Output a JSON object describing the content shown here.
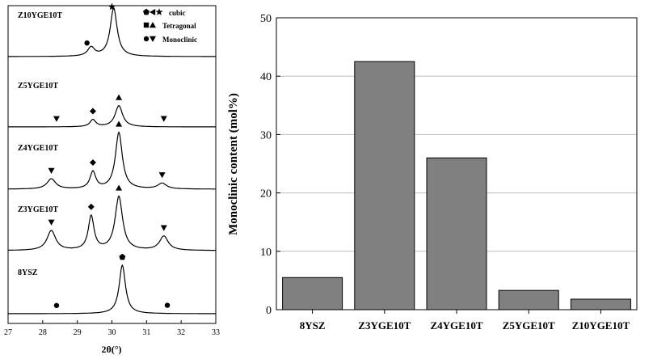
{
  "chart_data": [
    {
      "type": "line",
      "xlabel": "2θ(°)",
      "ylabel": "",
      "xlim": [
        27,
        33
      ],
      "xticks": [
        "27",
        "28",
        "29",
        "30",
        "31",
        "32",
        "33"
      ],
      "legend": {
        "placement": "top-right",
        "entries": [
          {
            "symbols": "pentagon,left-triangle,star",
            "label": "cubic"
          },
          {
            "symbols": "square,up-triangle",
            "label": "Tetragonal"
          },
          {
            "symbols": "circle,down-triangle",
            "label": "Monoclinic"
          }
        ]
      },
      "series": [
        {
          "name": "Z10YGE10T",
          "peaks": [
            {
              "x": 29.4,
              "h": 0.18,
              "w": 0.12
            },
            {
              "x": 30.05,
              "h": 1.0,
              "w": 0.12
            }
          ],
          "markers": [
            {
              "x": 29.28,
              "shape": "circle"
            },
            {
              "x": 30.0,
              "shape": "star"
            }
          ]
        },
        {
          "name": "Z5YGE10T",
          "peaks": [
            {
              "x": 29.45,
              "h": 0.25,
              "w": 0.1
            },
            {
              "x": 30.2,
              "h": 0.75,
              "w": 0.13
            }
          ],
          "markers": [
            {
              "x": 28.4,
              "shape": "down-triangle"
            },
            {
              "x": 29.45,
              "shape": "diamond"
            },
            {
              "x": 30.2,
              "shape": "up-triangle"
            },
            {
              "x": 31.5,
              "shape": "down-triangle"
            }
          ]
        },
        {
          "name": "Z4YGE10T",
          "peaks": [
            {
              "x": 28.25,
              "h": 0.18,
              "w": 0.15
            },
            {
              "x": 29.45,
              "h": 0.3,
              "w": 0.1
            },
            {
              "x": 30.2,
              "h": 1.0,
              "w": 0.12
            },
            {
              "x": 31.45,
              "h": 0.1,
              "w": 0.15
            }
          ],
          "markers": [
            {
              "x": 28.25,
              "shape": "down-triangle"
            },
            {
              "x": 29.45,
              "shape": "diamond"
            },
            {
              "x": 30.2,
              "shape": "up-triangle"
            },
            {
              "x": 31.45,
              "shape": "down-triangle"
            }
          ]
        },
        {
          "name": "Z3YGE10T",
          "peaks": [
            {
              "x": 28.25,
              "h": 0.35,
              "w": 0.15
            },
            {
              "x": 29.4,
              "h": 0.6,
              "w": 0.1
            },
            {
              "x": 30.2,
              "h": 0.95,
              "w": 0.13
            },
            {
              "x": 31.5,
              "h": 0.25,
              "w": 0.15
            }
          ],
          "markers": [
            {
              "x": 28.25,
              "shape": "down-triangle"
            },
            {
              "x": 29.4,
              "shape": "diamond"
            },
            {
              "x": 30.2,
              "shape": "up-triangle"
            },
            {
              "x": 31.5,
              "shape": "down-triangle"
            }
          ]
        },
        {
          "name": "8YSZ",
          "peaks": [
            {
              "x": 30.3,
              "h": 1.0,
              "w": 0.11
            }
          ],
          "markers": [
            {
              "x": 28.4,
              "shape": "circle"
            },
            {
              "x": 30.3,
              "shape": "pentagon"
            },
            {
              "x": 31.6,
              "shape": "circle"
            }
          ]
        }
      ]
    },
    {
      "type": "bar",
      "title": "",
      "xlabel": "",
      "ylabel": "Monoclinic content (mol%)",
      "ylim": [
        0,
        50
      ],
      "yticks": [
        "0",
        "10",
        "20",
        "30",
        "40",
        "50"
      ],
      "grid": true,
      "categories": [
        "8YSZ",
        "Z3YGE10T",
        "Z4YGE10T",
        "Z5YGE10T",
        "Z10YGE10T"
      ],
      "values": [
        5.5,
        42.5,
        26.0,
        3.3,
        1.8
      ],
      "bar_color": "#808080"
    }
  ]
}
